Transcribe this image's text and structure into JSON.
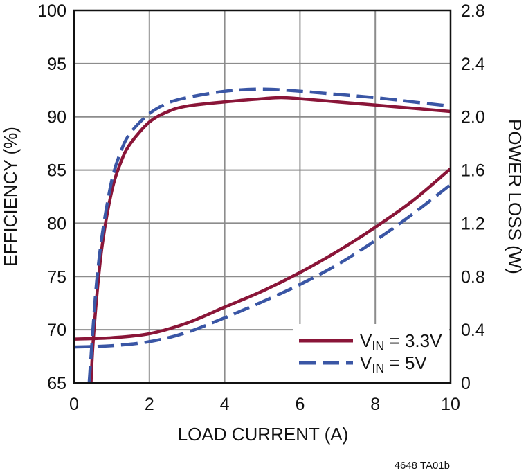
{
  "chart_data": {
    "type": "line",
    "xlabel": "LOAD CURRENT (A)",
    "ylabel_left": "EFFICIENCY (%)",
    "ylabel_right": "POWER LOSS (W)",
    "xlim": [
      0,
      10
    ],
    "ylim_left": [
      65,
      100
    ],
    "ylim_right": [
      0,
      2.8
    ],
    "x_ticks": [
      "0",
      "2",
      "4",
      "6",
      "8",
      "10"
    ],
    "y_ticks_left": [
      "65",
      "70",
      "75",
      "80",
      "85",
      "90",
      "95",
      "100"
    ],
    "y_ticks_right": [
      "0",
      "0.4",
      "0.8",
      "1.2",
      "1.6",
      "2.0",
      "2.4",
      "2.8"
    ],
    "grid": true,
    "legend_position": "bottom-right",
    "series": [
      {
        "name_main": "V",
        "name_sub": "IN",
        "name_rest": " = 3.3V",
        "color": "#8a1538",
        "dash": "solid",
        "efficiency": [
          [
            0.45,
            65
          ],
          [
            0.5,
            68.5
          ],
          [
            0.6,
            73
          ],
          [
            0.75,
            78
          ],
          [
            1.0,
            83
          ],
          [
            1.25,
            85.8
          ],
          [
            1.5,
            87.5
          ],
          [
            2.0,
            89.5
          ],
          [
            2.5,
            90.5
          ],
          [
            3.0,
            91.0
          ],
          [
            4.0,
            91.4
          ],
          [
            5.0,
            91.7
          ],
          [
            5.5,
            91.8
          ],
          [
            6.0,
            91.7
          ],
          [
            7.0,
            91.4
          ],
          [
            8.0,
            91.1
          ],
          [
            9.0,
            90.8
          ],
          [
            10.0,
            90.5
          ]
        ],
        "power_loss": [
          [
            0,
            0.33
          ],
          [
            1,
            0.34
          ],
          [
            2,
            0.37
          ],
          [
            3,
            0.45
          ],
          [
            4,
            0.57
          ],
          [
            5,
            0.69
          ],
          [
            6,
            0.83
          ],
          [
            7,
            0.99
          ],
          [
            8,
            1.17
          ],
          [
            9,
            1.37
          ],
          [
            10,
            1.61
          ]
        ]
      },
      {
        "name_main": "V",
        "name_sub": "IN",
        "name_rest": " = 5V",
        "color": "#3a56a5",
        "dash": "long-dash",
        "efficiency": [
          [
            0.4,
            65
          ],
          [
            0.5,
            70
          ],
          [
            0.6,
            74.5
          ],
          [
            0.75,
            79
          ],
          [
            1.0,
            84
          ],
          [
            1.25,
            86.8
          ],
          [
            1.5,
            88.5
          ],
          [
            2.0,
            90.3
          ],
          [
            2.5,
            91.3
          ],
          [
            3.0,
            91.8
          ],
          [
            4.0,
            92.4
          ],
          [
            5.0,
            92.6
          ],
          [
            6.0,
            92.4
          ],
          [
            7.0,
            92.1
          ],
          [
            8.0,
            91.8
          ],
          [
            9.0,
            91.4
          ],
          [
            10.0,
            91.0
          ]
        ],
        "power_loss": [
          [
            0,
            0.27
          ],
          [
            1,
            0.28
          ],
          [
            2,
            0.31
          ],
          [
            3,
            0.38
          ],
          [
            4,
            0.49
          ],
          [
            5,
            0.61
          ],
          [
            6,
            0.74
          ],
          [
            7,
            0.89
          ],
          [
            8,
            1.07
          ],
          [
            9,
            1.27
          ],
          [
            10,
            1.49
          ]
        ]
      }
    ]
  },
  "figure_code": "4648 TA01b"
}
